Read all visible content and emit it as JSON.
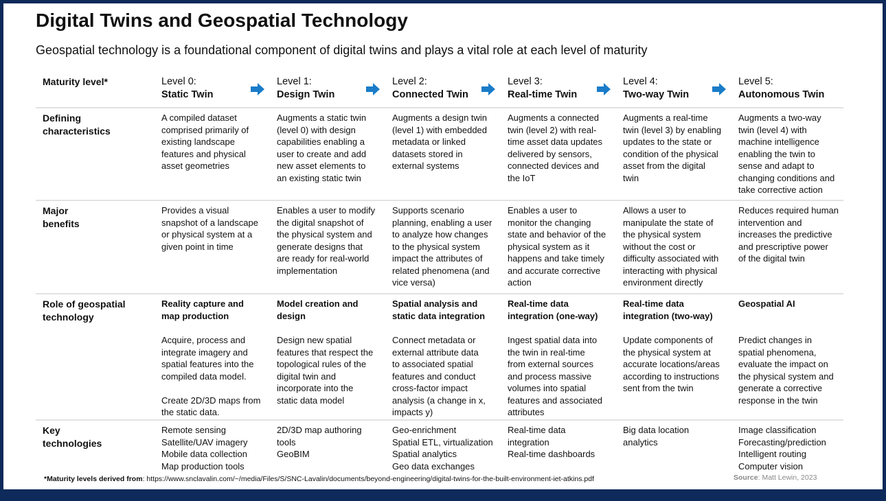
{
  "title": "Digital Twins and Geospatial Technology",
  "subtitle": "Geospatial technology is a foundational component of digital twins and plays a vital role at each level of maturity",
  "colors": {
    "border": "#0d2a5a",
    "arrow": "#1a7cc8"
  },
  "header": {
    "label": "Maturity level*",
    "levels": [
      {
        "num": "Level 0:",
        "name": "Static Twin"
      },
      {
        "num": "Level 1:",
        "name": "Design Twin"
      },
      {
        "num": "Level 2:",
        "name": "Connected Twin"
      },
      {
        "num": "Level 3:",
        "name": "Real-time Twin"
      },
      {
        "num": "Level 4:",
        "name": "Two-way Twin"
      },
      {
        "num": "Level 5:",
        "name": "Autonomous Twin"
      }
    ]
  },
  "defining": {
    "label": "Defining\ncharacteristics",
    "cells": [
      "A compiled dataset\ncomprised primarily of\nexisting landscape\nfeatures and physical\nasset geometries",
      "Augments a static twin\n(level 0) with design\ncapabilities enabling a\nuser to create and add\nnew asset elements to\nan existing static twin",
      "Augments a design twin\n(level 1) with embedded\nmetadata or linked\ndatasets stored in\nexternal systems",
      "Augments a connected\ntwin (level 2) with real-\ntime asset data updates\ndelivered by sensors,\nconnected devices and\nthe IoT",
      "Augments a real-time\ntwin (level 3) by enabling\nupdates to the state or\ncondition of the physical\nasset from the digital\ntwin",
      "Augments a two-way\ntwin (level 4) with\nmachine intelligence\nenabling the twin to\nsense and adapt to\nchanging conditions and\ntake corrective action"
    ]
  },
  "benefits": {
    "label": "Major\nbenefits",
    "cells": [
      "Provides a visual\nsnapshot of a landscape\nor physical system at a\ngiven point in time",
      "Enables a user to modify\nthe digital snapshot of\nthe physical system and\ngenerate designs that\nare ready for real-world\nimplementation",
      "Supports scenario\nplanning, enabling a user\nto analyze how changes\nto the physical system\nimpact the attributes of\nrelated phenomena (and\nvice versa)",
      "Enables a user to\nmonitor the changing\nstate and behavior of the\nphysical system as it\nhappens and take timely\nand accurate corrective\naction",
      "Allows a user to\nmanipulate the state of\nthe physical system\nwithout the cost or\ndifficulty associated with\ninteracting with physical\nenvironment directly",
      "Reduces required human\nintervention and\nincreases the predictive\nand prescriptive power\nof the digital twin"
    ]
  },
  "role": {
    "label": "Role of geospatial\ntechnology",
    "cells": [
      {
        "head": "Reality capture and\nmap production",
        "body": "Acquire, process and\nintegrate imagery and\nspatial features into the\ncompiled data model.\n\nCreate 2D/3D maps from\nthe static data."
      },
      {
        "head": "Model creation and\ndesign",
        "body": "Design new spatial\nfeatures that respect the\ntopological rules of the\ndigital twin and\nincorporate into the\nstatic data model"
      },
      {
        "head": "Spatial analysis and\nstatic data integration",
        "body": "Connect metadata or\nexternal attribute data\nto associated spatial\nfeatures and conduct\ncross-factor impact\nanalysis (a change in x,\nimpacts y)"
      },
      {
        "head": "Real-time data\nintegration (one-way)",
        "body": "Ingest spatial data into\nthe twin in real-time\nfrom external sources\nand process massive\nvolumes into spatial\nfeatures and associated\nattributes"
      },
      {
        "head": "Real-time data\nintegration (two-way)",
        "body": "Update components of\nthe physical system at\naccurate locations/areas\naccording to instructions\nsent from the twin"
      },
      {
        "head": "Geospatial AI",
        "body": "Predict changes in\nspatial phenomena,\nevaluate the impact on\nthe physical system and\ngenerate a corrective\nresponse in the twin"
      }
    ]
  },
  "tech": {
    "label": "Key\ntechnologies",
    "cells": [
      "Remote sensing\nSatellite/UAV imagery\nMobile data collection\nMap production tools",
      "2D/3D map authoring\ntools\nGeoBIM",
      "Geo-enrichment\nSpatial ETL, virtualization\nSpatial analytics\nGeo data exchanges",
      "Real-time data\nintegration\nReal-time dashboards",
      "Big data location\nanalytics",
      "Image classification\nForecasting/prediction\nIntelligent routing\nComputer vision"
    ]
  },
  "footer": {
    "note_label": "*Maturity levels derived from",
    "note_url": ": https://www.snclavalin.com/~/media/Files/S/SNC-Lavalin/documents/beyond-engineering/digital-twins-for-the-built-environment-iet-atkins.pdf",
    "source_label": "Source",
    "source_value": ": Matt Lewin, 2023"
  }
}
